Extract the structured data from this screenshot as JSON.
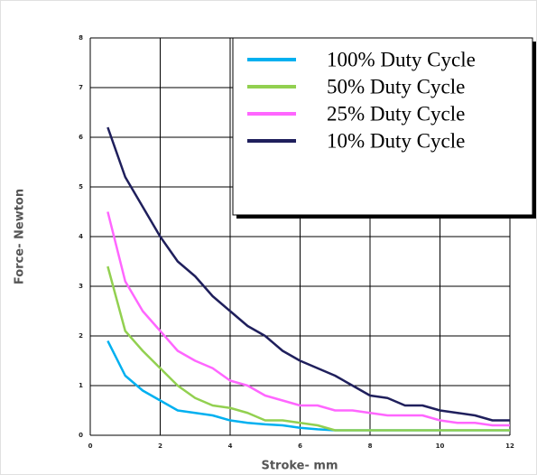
{
  "chart_data": {
    "type": "line",
    "x_label": "Stroke- mm",
    "y_label": "Force- Newton",
    "x": [
      0.5,
      1,
      1.5,
      2,
      2.5,
      3,
      3.5,
      4,
      4.5,
      5,
      5.5,
      6,
      6.5,
      7,
      7.5,
      8,
      8.5,
      9,
      9.5,
      10,
      10.5,
      11,
      11.5,
      12
    ],
    "series": [
      {
        "name": "100% Duty Cycle",
        "color": "#00b0f0",
        "values": [
          1.9,
          1.2,
          0.9,
          0.7,
          0.5,
          0.45,
          0.4,
          0.3,
          0.25,
          0.22,
          0.2,
          0.15,
          0.12,
          0.1,
          0.1,
          0.1,
          0.1,
          0.1,
          0.1,
          0.1,
          0.1,
          0.1,
          0.1,
          0.1
        ]
      },
      {
        "name": "50% Duty Cycle",
        "color": "#92d050",
        "values": [
          3.4,
          2.1,
          1.7,
          1.35,
          1.0,
          0.75,
          0.6,
          0.55,
          0.45,
          0.3,
          0.3,
          0.25,
          0.2,
          0.1,
          0.1,
          0.1,
          0.1,
          0.1,
          0.1,
          0.1,
          0.1,
          0.1,
          0.1,
          0.1
        ]
      },
      {
        "name": "25% Duty Cycle",
        "color": "#ff66ff",
        "values": [
          4.5,
          3.1,
          2.5,
          2.1,
          1.7,
          1.5,
          1.35,
          1.1,
          1.0,
          0.8,
          0.7,
          0.6,
          0.6,
          0.5,
          0.5,
          0.45,
          0.4,
          0.4,
          0.4,
          0.3,
          0.25,
          0.25,
          0.2,
          0.2
        ]
      },
      {
        "name": "10% Duty Cycle",
        "color": "#1f1f5c",
        "values": [
          6.2,
          5.2,
          4.6,
          4.0,
          3.5,
          3.2,
          2.8,
          2.5,
          2.2,
          2.0,
          1.7,
          1.5,
          1.35,
          1.2,
          1.0,
          0.8,
          0.75,
          0.6,
          0.6,
          0.5,
          0.45,
          0.4,
          0.3,
          0.3
        ]
      }
    ],
    "xlim": [
      0,
      12
    ],
    "xticks": [
      0,
      2,
      4,
      6,
      8,
      10,
      12
    ],
    "ylim": [
      0,
      8
    ],
    "yticks": [
      0,
      1,
      2,
      3,
      4,
      5,
      6,
      7,
      8
    ],
    "grid": true,
    "legend": "upper right"
  }
}
